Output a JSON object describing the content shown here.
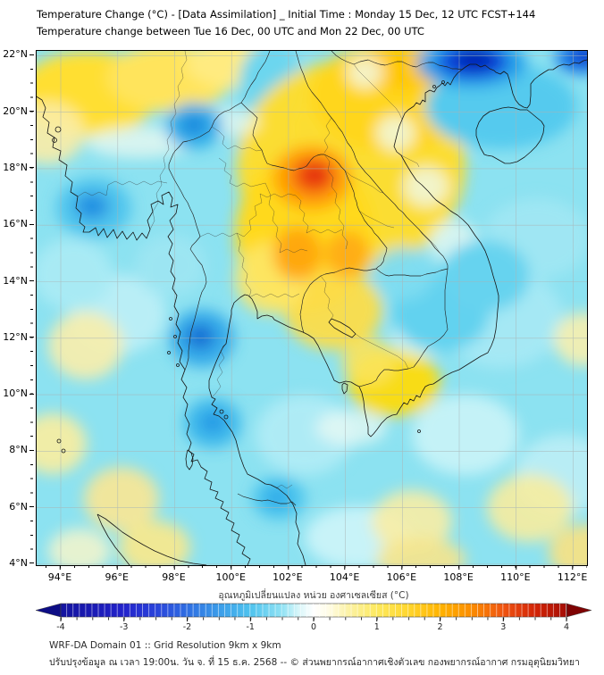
{
  "title": {
    "line1": "Temperature Change (°C) - [Data Assimilation] _ Initial Time : Monday 15 Dec, 12 UTC FCST+144",
    "line2": "Temperature change between Tue 16 Dec, 00 UTC and Mon 22 Dec, 00 UTC"
  },
  "map": {
    "lat_labels": [
      "22°N",
      "20°N",
      "18°N",
      "16°N",
      "14°N",
      "12°N",
      "10°N",
      "8°N",
      "6°N",
      "4°N"
    ],
    "lon_labels": [
      "94°E",
      "96°E",
      "98°E",
      "100°E",
      "102°E",
      "104°E",
      "106°E",
      "108°E",
      "110°E",
      "112°E"
    ]
  },
  "colorbar": {
    "title": "อุณหภูมิเปลี่ยนแปลง หน่วย องศาเซลเซียส (°C)",
    "ticks": [
      "-4",
      "-3",
      "-2",
      "-1",
      "0",
      "1",
      "2",
      "3",
      "4"
    ],
    "min_color": "#14149e",
    "zero_color": "#ffffff",
    "max_color": "#a50d05"
  },
  "footer": {
    "line1": "WRF-DA Domain 01 :: Grid Resolution 9km x 9km",
    "line2": "ปรับปรุงข้อมูล ณ เวลา 19:00น. วัน จ. ที่ 15 ธ.ค. 2568 -- © ส่วนพยากรณ์อากาศเชิงตัวเลข กองพยากรณ์อากาศ กรมอุตุนิยมวิทยา"
  },
  "chart_data": {
    "type": "heatmap",
    "title": "Temperature Change (°C) - [Data Assimilation] _ Initial Time : Monday 15 Dec, 12 UTC FCST+144",
    "subtitle": "Temperature change between Tue 16 Dec, 00 UTC and Mon 22 Dec, 00 UTC",
    "x_ticks_deg_east": [
      94,
      96,
      98,
      100,
      102,
      104,
      106,
      108,
      110,
      112
    ],
    "y_ticks_deg_north": [
      22,
      20,
      18,
      16,
      14,
      12,
      10,
      8,
      6,
      4
    ],
    "xlim_deg_east": [
      93.15,
      112.5
    ],
    "ylim_deg_north": [
      3.97,
      22.17
    ],
    "grid": true,
    "colorbar": {
      "label_thai": "อุณหภูมิเปลี่ยนแปลง หน่วย องศาเซลเซียส (°C)",
      "units": "°C",
      "ticks": [
        -4,
        -3,
        -2,
        -1,
        0,
        1,
        2,
        3,
        4
      ],
      "range": [
        -4,
        4
      ],
      "orientation": "horizontal",
      "position": "bottom"
    },
    "anomaly_features": [
      {
        "region": "NE Thailand / Loei-Udon area (~17.6N, 102.7E)",
        "value_c": "+3 to +3.5 (warm core)"
      },
      {
        "region": "Central NE Thailand (~15.3N, 102.3E and 104E)",
        "value_c": "+2 to +2.5"
      },
      {
        "region": "N Laos / NW Vietnam highlands",
        "value_c": "+1 to +2"
      },
      {
        "region": "NW Myanmar & top-left edge (~21N, 94-99E)",
        "value_c": "+1 to +1.5"
      },
      {
        "region": "Gulf of Tonkin coast (~21.5N, 107.5E)",
        "value_c": "-3.5 to -4 (cold core)"
      },
      {
        "region": "Top-right corner (~22N, 112E)",
        "value_c": "-3"
      },
      {
        "region": "N Thailand border (~20N, 98.7E)",
        "value_c": "-1.5"
      },
      {
        "region": "Bay of Bengal (~16.5N, 95E)",
        "value_c": "-2"
      },
      {
        "region": "Upper Thai peninsula (~12N, 98.9E)",
        "value_c": "-2"
      },
      {
        "region": "South China Sea / Gulf of Thailand",
        "value_c": "-0.5 to -1"
      },
      {
        "region": "Mekong Delta (~9.8N, 105.8E)",
        "value_c": "+1"
      },
      {
        "region": "Scattered sea patches bottom / right edge",
        "value_c": "+0.5"
      }
    ]
  }
}
